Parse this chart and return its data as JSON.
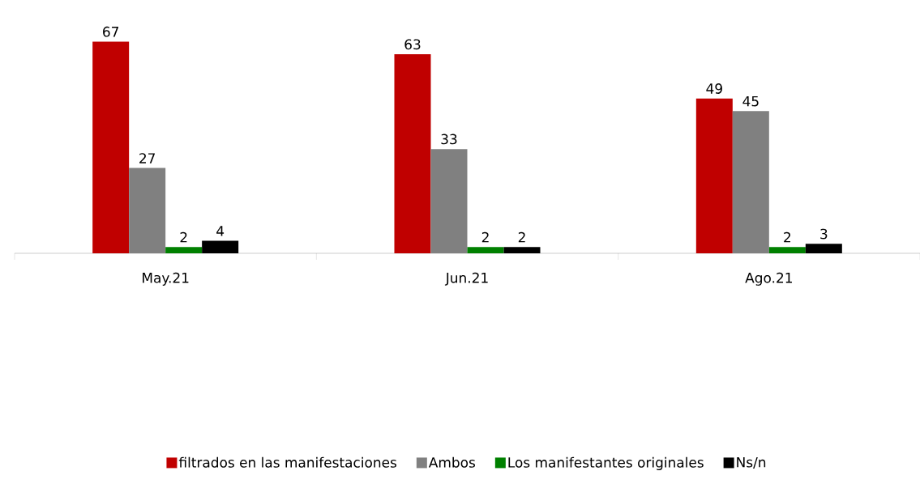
{
  "chart_data": {
    "type": "bar",
    "categories": [
      "May.21",
      "Jun.21",
      "Ago.21"
    ],
    "series": [
      {
        "name": "filtrados en las manifestaciones",
        "color": "#c00000",
        "values": [
          67,
          63,
          49
        ]
      },
      {
        "name": "Ambos",
        "color": "#808080",
        "values": [
          27,
          33,
          45
        ]
      },
      {
        "name": "Los manifestantes originales",
        "color": "#008000",
        "values": [
          2,
          2,
          2
        ]
      },
      {
        "name": "Ns/n",
        "color": "#000000",
        "values": [
          4,
          2,
          3
        ]
      }
    ],
    "data_labels": true,
    "legend": "bottom"
  }
}
